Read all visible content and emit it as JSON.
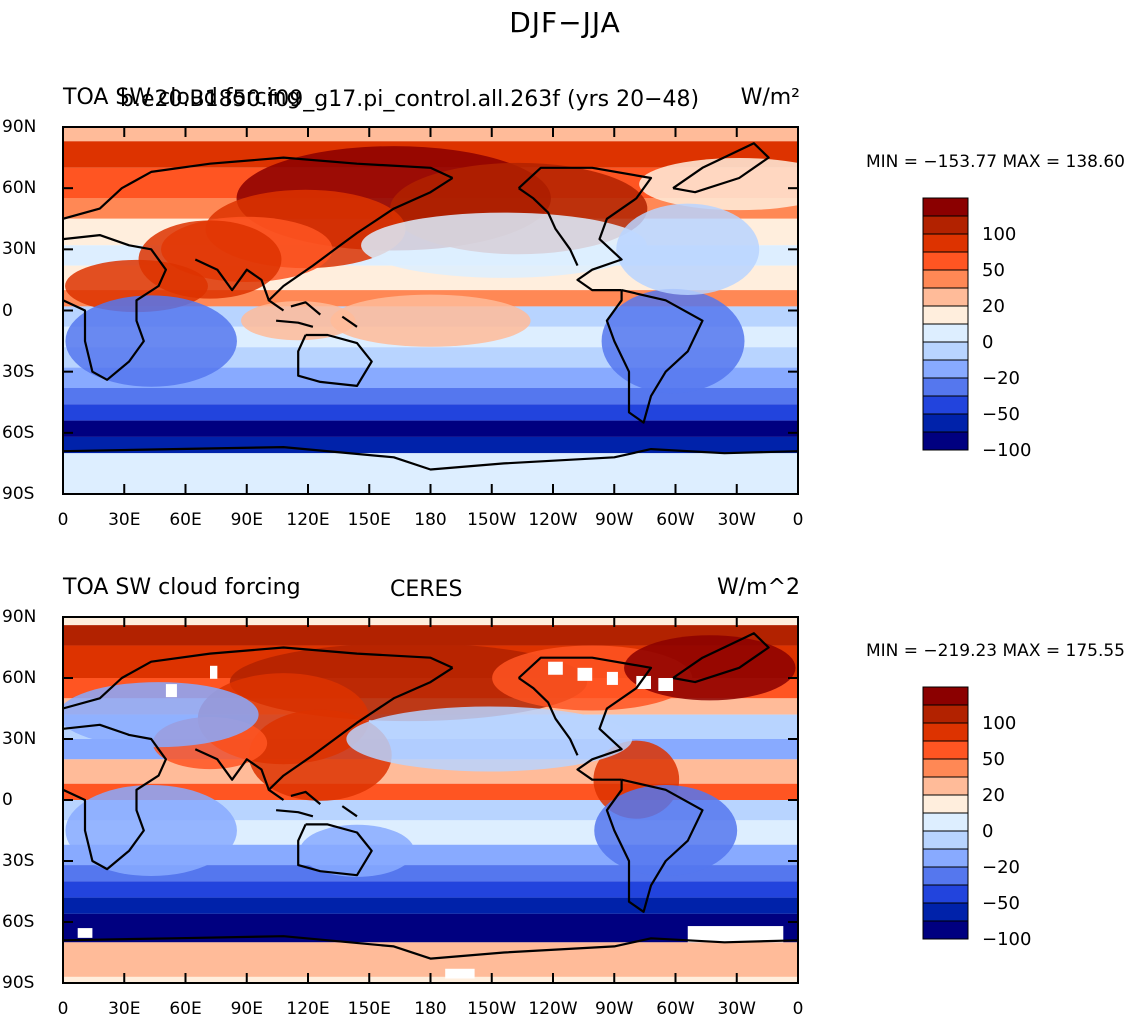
{
  "title": "DJF−JJA",
  "panels": [
    {
      "left_label": "TOA SW cloud forcing",
      "center_label": "b.e20.B1850.f09_g17.pi_control.all.263f (yrs 20−48)",
      "right_label": "W/m²",
      "min_max": "MIN = −153.77  MAX = 138.60",
      "has_missing": false
    },
    {
      "left_label": "TOA SW cloud forcing",
      "center_label": "CERES",
      "right_label": "W/m^2",
      "min_max": "MIN = −219.23  MAX = 175.55",
      "has_missing": true
    }
  ],
  "lat_labels": [
    "90N",
    "60N",
    "30N",
    "0",
    "30S",
    "60S",
    "90S"
  ],
  "lon_labels": [
    "0",
    "30E",
    "60E",
    "90E",
    "120E",
    "150E",
    "180",
    "150W",
    "120W",
    "90W",
    "60W",
    "30W",
    "0"
  ],
  "colorbar_labels": [
    "100",
    "50",
    "20",
    "0",
    "−20",
    "−50",
    "−100"
  ],
  "colorbar_colors": [
    "#8b0000",
    "#b22200",
    "#dd3300",
    "#ff5522",
    "#ff8855",
    "#ffbb99",
    "#ffeedd",
    "#ddeeff",
    "#b8d4ff",
    "#88aaff",
    "#5577ee",
    "#2244dd",
    "#0022aa",
    "#000080"
  ]
}
